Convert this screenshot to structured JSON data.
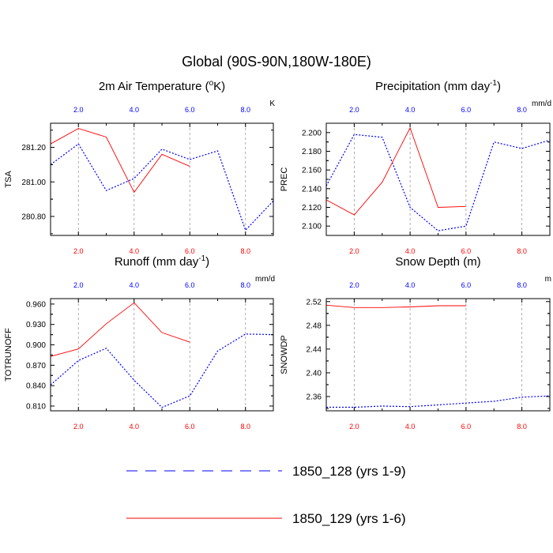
{
  "figure": {
    "title": "Global (90S-90N,180W-180E)"
  },
  "legend": {
    "entries": [
      {
        "label": "1850_128 (yrs 1-9)",
        "color": "#0000ff",
        "dash": "dashed"
      },
      {
        "label": "1850_129 (yrs 1-6)",
        "color": "#ff0000",
        "dash": "solid"
      }
    ]
  },
  "colors": {
    "series_a": "#0000ff",
    "series_b": "#ff0000",
    "gridline": "#999999",
    "top_tick_labels": "#0000ff",
    "bottom_tick_labels": "#ff0000"
  },
  "chart_data": [
    {
      "type": "line",
      "title_text": "2m Air Temperature (",
      "title_sup": "o",
      "title_text2": "K)",
      "ylabel": "TSA",
      "unit": "K",
      "xlim": [
        1,
        9
      ],
      "ylim": [
        280.69,
        281.34
      ],
      "x_ticks": [
        2,
        4,
        6,
        8
      ],
      "x_tick_labels_top": [
        "2.0",
        "4.0",
        "6.0",
        "8.0"
      ],
      "x_tick_labels_bottom": [
        "2.0",
        "4.0",
        "6.0",
        "8.0"
      ],
      "y_ticks": [
        280.8,
        281.0,
        281.2
      ],
      "y_tick_labels": [
        "280.80",
        "281.00",
        "281.20"
      ],
      "grid_x": true,
      "series": [
        {
          "name": "1850_128 (yrs 1-9)",
          "x": [
            1,
            2,
            3,
            4,
            5,
            6,
            7,
            8,
            9
          ],
          "values": [
            281.1,
            281.22,
            280.95,
            281.02,
            281.19,
            281.13,
            281.18,
            280.72,
            280.89
          ]
        },
        {
          "name": "1850_129 (yrs 1-6)",
          "x": [
            1,
            2,
            3,
            4,
            5,
            6
          ],
          "values": [
            281.22,
            281.31,
            281.26,
            280.94,
            281.16,
            281.09
          ]
        }
      ]
    },
    {
      "type": "line",
      "title_text": "Precipitation (mm day",
      "title_sup": "-1",
      "title_text2": ")",
      "ylabel": "PREC",
      "unit": "mm/d",
      "xlim": [
        1,
        9
      ],
      "ylim": [
        2.09,
        2.21
      ],
      "x_ticks": [
        2,
        4,
        6,
        8
      ],
      "x_tick_labels_top": [
        "2.0",
        "4.0",
        "6.0",
        "8.0"
      ],
      "x_tick_labels_bottom": [
        "2.0",
        "4.0",
        "6.0",
        "8.0"
      ],
      "y_ticks": [
        2.1,
        2.12,
        2.14,
        2.16,
        2.18,
        2.2
      ],
      "y_tick_labels": [
        "2.100",
        "2.120",
        "2.140",
        "2.160",
        "2.180",
        "2.200"
      ],
      "grid_x": true,
      "series": [
        {
          "name": "1850_128 (yrs 1-9)",
          "x": [
            1,
            2,
            3,
            4,
            5,
            6,
            7,
            8,
            9
          ],
          "values": [
            2.143,
            2.198,
            2.195,
            2.12,
            2.095,
            2.1,
            2.19,
            2.183,
            2.192
          ]
        },
        {
          "name": "1850_129 (yrs 1-6)",
          "x": [
            1,
            2,
            3,
            4,
            5,
            6
          ],
          "values": [
            2.128,
            2.112,
            2.147,
            2.205,
            2.12,
            2.121
          ]
        }
      ]
    },
    {
      "type": "line",
      "title_text": "Runoff (mm day",
      "title_sup": "-1",
      "title_text2": ")",
      "ylabel": "TOTRUNOFF",
      "unit": "mm/d",
      "xlim": [
        1,
        9
      ],
      "ylim": [
        0.803,
        0.968
      ],
      "x_ticks": [
        2,
        4,
        6,
        8
      ],
      "x_tick_labels_top": [
        "2.0",
        "4.0",
        "6.0",
        "8.0"
      ],
      "x_tick_labels_bottom": [
        "2.0",
        "4.0",
        "6.0",
        "8.0"
      ],
      "y_ticks": [
        0.81,
        0.84,
        0.87,
        0.9,
        0.93,
        0.96
      ],
      "y_tick_labels": [
        "0.810",
        "0.840",
        "0.870",
        "0.900",
        "0.930",
        "0.960"
      ],
      "grid_x": true,
      "series": [
        {
          "name": "1850_128 (yrs 1-9)",
          "x": [
            1,
            2,
            3,
            4,
            5,
            6,
            7,
            8,
            9
          ],
          "values": [
            0.841,
            0.877,
            0.895,
            0.848,
            0.808,
            0.825,
            0.891,
            0.916,
            0.915
          ]
        },
        {
          "name": "1850_129 (yrs 1-6)",
          "x": [
            1,
            2,
            3,
            4,
            5,
            6
          ],
          "values": [
            0.883,
            0.894,
            0.931,
            0.962,
            0.918,
            0.904
          ]
        }
      ]
    },
    {
      "type": "line",
      "title_text": "Snow Depth (m)",
      "title_sup": "",
      "title_text2": "",
      "ylabel": "SNOWDP",
      "unit": "m",
      "xlim": [
        1,
        9
      ],
      "ylim": [
        2.336,
        2.525
      ],
      "x_ticks": [
        2,
        4,
        6,
        8
      ],
      "x_tick_labels_top": [
        "2.0",
        "4.0",
        "6.0",
        "8.0"
      ],
      "x_tick_labels_bottom": [
        "2.0",
        "4.0",
        "6.0",
        "8.0"
      ],
      "y_ticks": [
        2.36,
        2.4,
        2.44,
        2.48,
        2.52
      ],
      "y_tick_labels": [
        "2.36",
        "2.40",
        "2.44",
        "2.48",
        "2.52"
      ],
      "grid_x": true,
      "series": [
        {
          "name": "1850_128 (yrs 1-9)",
          "x": [
            1,
            2,
            3,
            4,
            5,
            6,
            7,
            8,
            9
          ],
          "values": [
            2.342,
            2.342,
            2.344,
            2.343,
            2.346,
            2.349,
            2.352,
            2.359,
            2.361
          ]
        },
        {
          "name": "1850_129 (yrs 1-6)",
          "x": [
            1,
            2,
            3,
            4,
            5,
            6
          ],
          "values": [
            2.514,
            2.51,
            2.51,
            2.511,
            2.513,
            2.513
          ]
        }
      ]
    }
  ]
}
